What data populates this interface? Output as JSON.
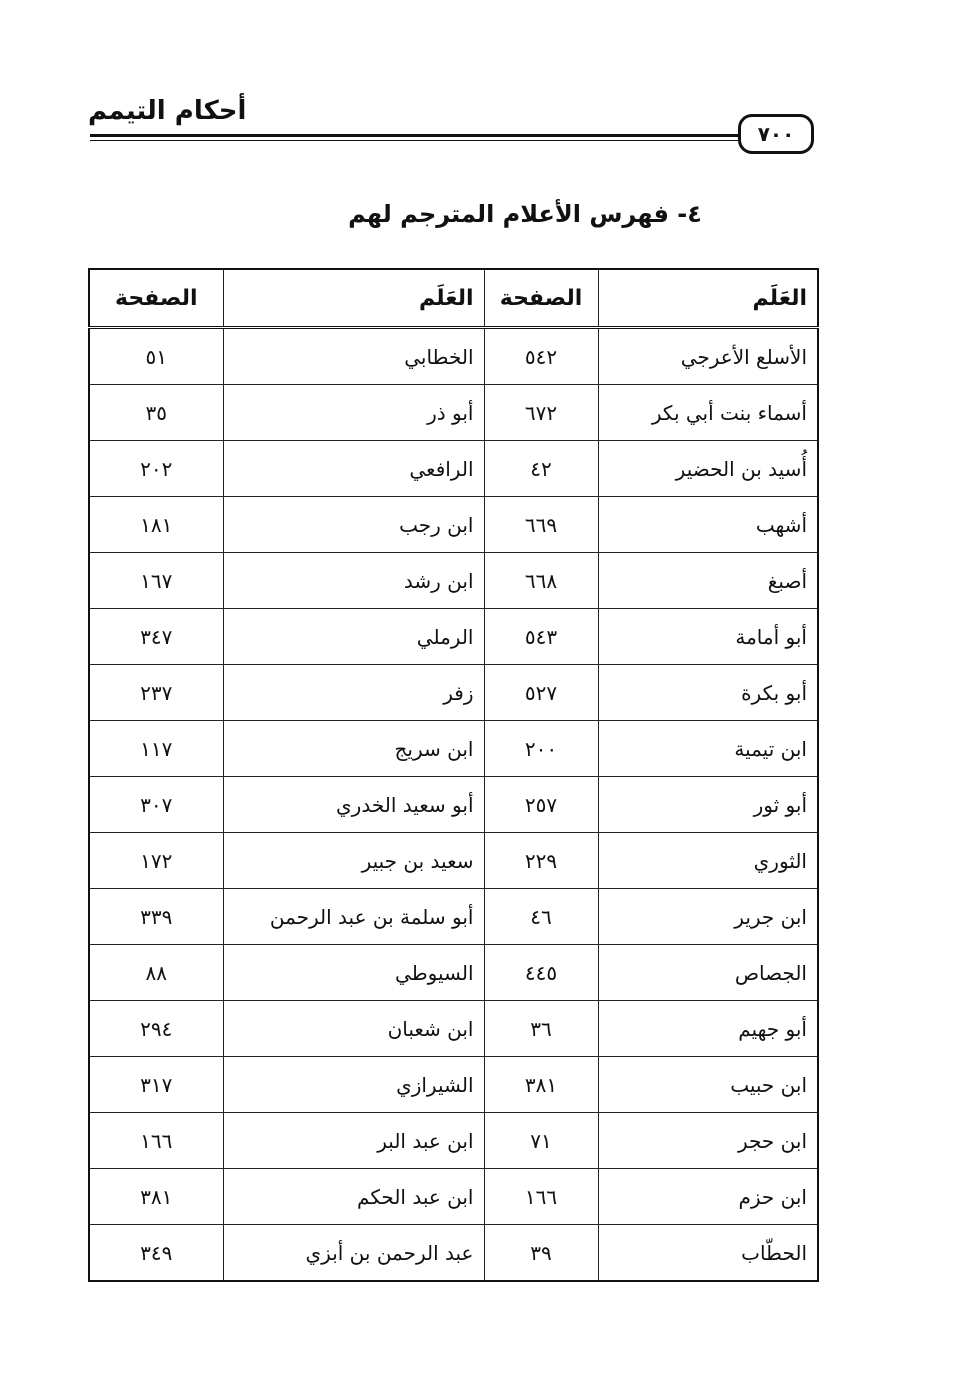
{
  "header": {
    "title": "أحكام التيمم",
    "page_number": "٧٠٠"
  },
  "section_title": "٤- فهرس الأعلام المترجم لهم",
  "table": {
    "columns": [
      "العَلَم",
      "الصفحة",
      "العَلَم",
      "الصفحة"
    ],
    "rows": [
      [
        "الأسلع الأعرجي",
        "٥٤٢",
        "الخطابي",
        "٥١"
      ],
      [
        "أسماء بنت أبي بكر",
        "٦٧٢",
        "أبو ذر",
        "٣٥"
      ],
      [
        "أُسيد بن الحضير",
        "٤٢",
        "الرافعي",
        "٢٠٢"
      ],
      [
        "أشهب",
        "٦٦٩",
        "ابن رجب",
        "١٨١"
      ],
      [
        "أصبغ",
        "٦٦٨",
        "ابن رشد",
        "١٦٧"
      ],
      [
        "أبو أمامة",
        "٥٤٣",
        "الرملي",
        "٣٤٧"
      ],
      [
        "أبو بكرة",
        "٥٢٧",
        "زفر",
        "٢٣٧"
      ],
      [
        "ابن تيمية",
        "٢٠٠",
        "ابن سريج",
        "١١٧"
      ],
      [
        "أبو ثور",
        "٢٥٧",
        "أبو سعيد الخدري",
        "٣٠٧"
      ],
      [
        "الثوري",
        "٢٢٩",
        "سعيد بن جبير",
        "١٧٢"
      ],
      [
        "ابن جرير",
        "٤٦",
        "أبو سلمة بن عبد الرحمن",
        "٣٣٩"
      ],
      [
        "الجصاص",
        "٤٤٥",
        "السيوطي",
        "٨٨"
      ],
      [
        "أبو جهيم",
        "٣٦",
        "ابن شعبان",
        "٢٩٤"
      ],
      [
        "ابن حبيب",
        "٣٨١",
        "الشيرازي",
        "٣١٧"
      ],
      [
        "ابن حجر",
        "٧١",
        "ابن عبد البر",
        "١٦٦"
      ],
      [
        "ابن حزم",
        "١٦٦",
        "ابن عبد الحكم",
        "٣٨١"
      ],
      [
        "الحطّاب",
        "٣٩",
        "عبد الرحمن بن أبزي",
        "٣٤٩"
      ]
    ]
  }
}
